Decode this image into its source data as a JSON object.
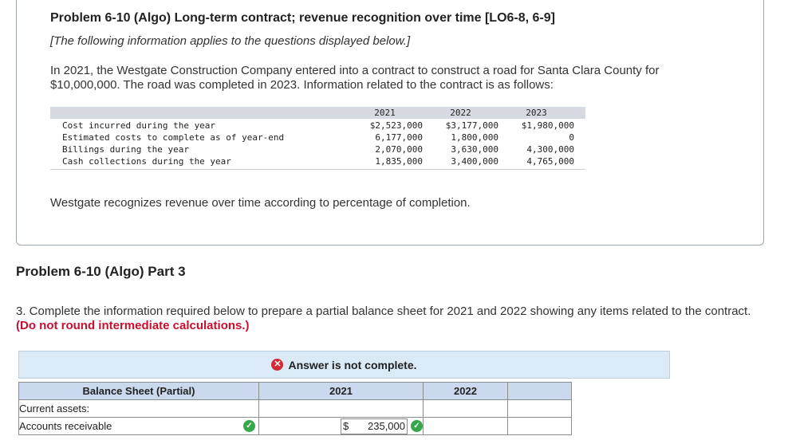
{
  "problem": {
    "title": "Problem 6-10 (Algo) Long-term contract; revenue recognition over time [LO6-8, 6-9]",
    "applies_note": "[The following information applies to the questions displayed below.]",
    "intro": "In 2021, the Westgate Construction Company entered into a contract to construct a road for Santa Clara County for $10,000,000. The road was completed in 2023. Information related to the contract is as follows:",
    "method": "Westgate recognizes revenue over time according to percentage of completion."
  },
  "contract_table": {
    "years": [
      "2021",
      "2022",
      "2023"
    ],
    "rows": [
      {
        "label": "Cost incurred during the year",
        "values": [
          "$2,523,000",
          "$3,177,000",
          "$1,980,000"
        ]
      },
      {
        "label": "Estimated costs to complete as of year-end",
        "values": [
          "6,177,000",
          "1,800,000",
          "0"
        ]
      },
      {
        "label": "Billings during the year",
        "values": [
          "2,070,000",
          "3,630,000",
          "4,300,000"
        ]
      },
      {
        "label": "Cash collections during the year",
        "values": [
          "1,835,000",
          "3,400,000",
          "4,765,000"
        ]
      }
    ]
  },
  "part": {
    "title": "Problem 6-10 (Algo) Part 3",
    "question": "3. Complete the information required below to prepare a partial balance sheet for 2021 and 2022 showing any items related to the contract.",
    "note": "(Do not round intermediate calculations.)"
  },
  "status_banner": {
    "text": "Answer is not complete.",
    "icon": "x-circle-icon",
    "color": "#d22a36"
  },
  "balance_sheet": {
    "header": "Balance Sheet (Partial)",
    "columns": [
      "2021",
      "2022"
    ],
    "rows": [
      {
        "label": "Current assets:"
      },
      {
        "label": "Accounts receivable",
        "status": "correct",
        "amount_2021": "235,000",
        "currency": "$",
        "amount_2021_status": "correct"
      }
    ]
  }
}
